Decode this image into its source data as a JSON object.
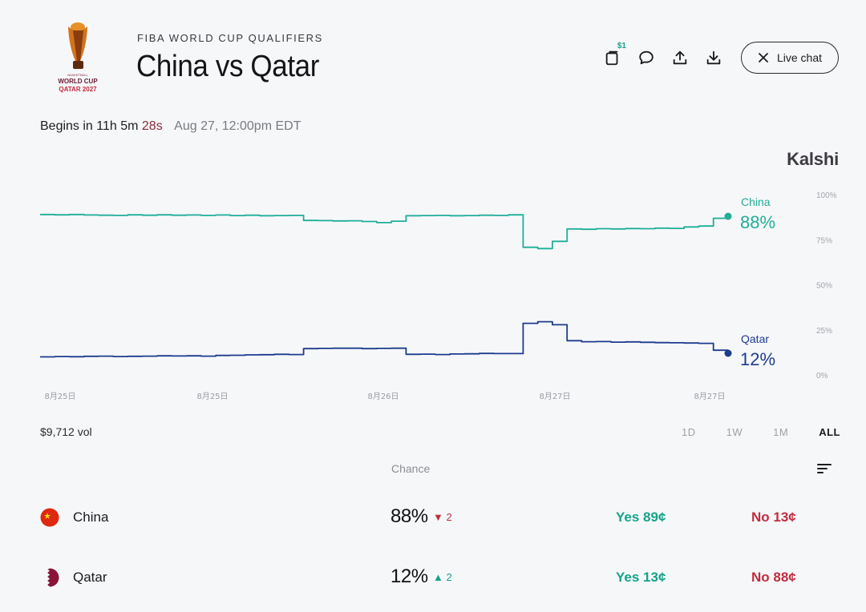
{
  "event": {
    "league": "FIBA WORLD CUP QUALIFIERS",
    "title": "China vs Qatar",
    "logo_text": [
      "WORLD CUP",
      "QATAR 2027"
    ]
  },
  "toolbar": {
    "badge": "$1",
    "icons": [
      "share-count-icon",
      "comment-icon",
      "upload-icon",
      "download-icon"
    ],
    "live_chat_label": "Live chat"
  },
  "countdown": {
    "prefix": "Begins in 11h 5m",
    "seconds": "28s",
    "date": "Aug 27, 12:00pm EDT"
  },
  "brand": "Kalshi",
  "chart_data": {
    "type": "line",
    "ylim": [
      0,
      100
    ],
    "y_ticks": [
      "100%",
      "75%",
      "50%",
      "25%",
      "0%"
    ],
    "x_ticks": [
      "8月25日",
      "8月25日",
      "8月26日",
      "8月27日",
      "8月27日"
    ],
    "series": [
      {
        "name": "China",
        "color": "#1fae98",
        "end_label": "88%",
        "values": [
          89,
          88.8,
          89,
          88.7,
          88.6,
          88.5,
          88.8,
          88.6,
          88.8,
          88.6,
          88.7,
          88.5,
          88.7,
          88.4,
          88.6,
          88.3,
          88.4,
          88.5,
          85.7,
          85.6,
          85.4,
          85.5,
          85.1,
          84.5,
          85.3,
          88.3,
          88.4,
          88.5,
          88.3,
          88.4,
          88.6,
          88.5,
          88.8,
          70.8,
          70.1,
          74.1,
          81,
          80.8,
          81.1,
          81,
          81.2,
          81.1,
          81.4,
          81.3,
          82.1,
          82.6,
          86.9,
          88
        ]
      },
      {
        "name": "Qatar",
        "color": "#1d3b8e",
        "end_label": "12%",
        "values": [
          10,
          10.2,
          10.1,
          10.3,
          10.4,
          10.2,
          10.3,
          10.4,
          10.6,
          10.5,
          10.6,
          10.4,
          10.8,
          10.9,
          11.1,
          11.2,
          11.4,
          11.3,
          14.6,
          14.7,
          14.8,
          14.8,
          14.6,
          14.7,
          14.8,
          11.4,
          11.5,
          11.3,
          11.6,
          11.7,
          11.9,
          11.8,
          11.8,
          28.6,
          29.5,
          27.8,
          19,
          18.4,
          18.5,
          18.2,
          18.3,
          18.1,
          17.9,
          17.8,
          17.7,
          17.5,
          13.7,
          12
        ]
      }
    ]
  },
  "volume": "$9,712 vol",
  "ranges": [
    {
      "label": "1D",
      "active": false
    },
    {
      "label": "1W",
      "active": false
    },
    {
      "label": "1M",
      "active": false
    },
    {
      "label": "ALL",
      "active": true
    }
  ],
  "table": {
    "chance_header": "Chance",
    "rows": [
      {
        "name": "China",
        "chance": "88%",
        "delta": "▼ 2",
        "yes": "Yes 89¢",
        "no": "No 13¢"
      },
      {
        "name": "Qatar",
        "chance": "12%",
        "delta": "▲ 2",
        "yes": "Yes 13¢",
        "no": "No 88¢"
      }
    ]
  }
}
